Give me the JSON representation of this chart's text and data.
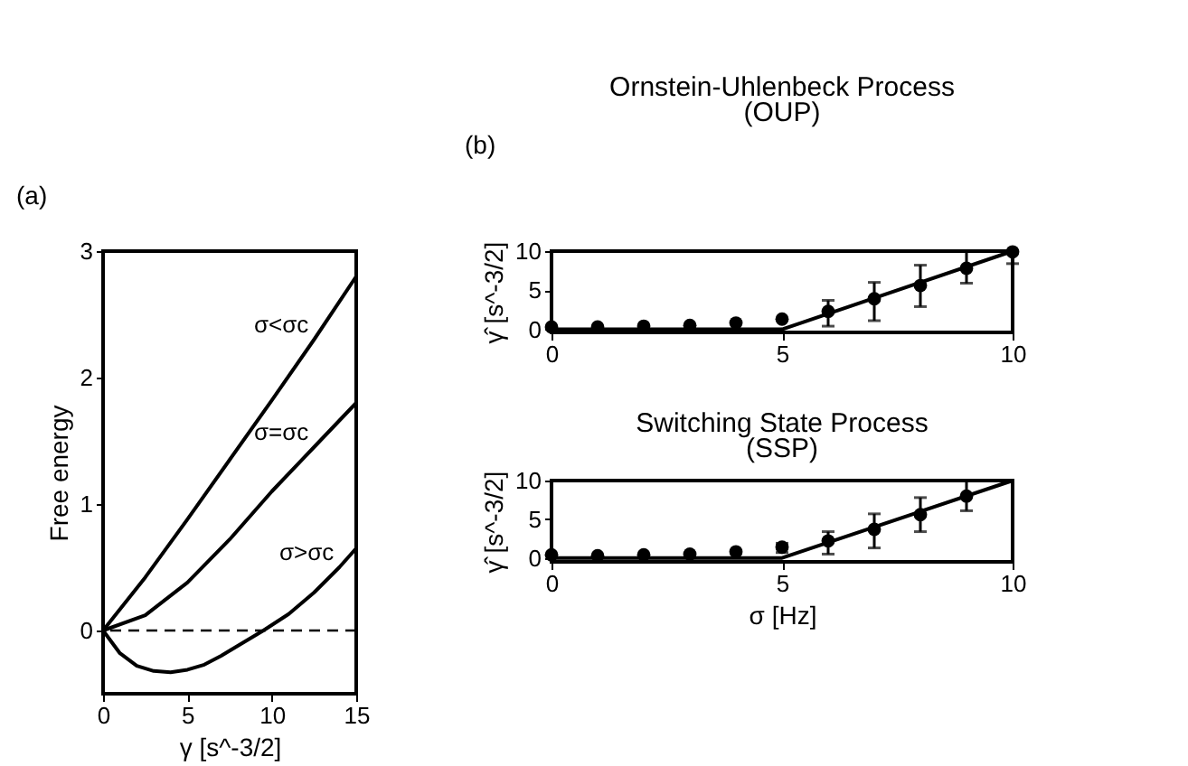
{
  "chart_data": [
    {
      "type": "line",
      "xlabel": "γ [s^-3/2]",
      "ylabel": "Free energy",
      "xlim": [
        0,
        15
      ],
      "ylim": [
        -0.5,
        3
      ],
      "xticks": [
        0,
        5,
        10,
        15
      ],
      "yticks": [
        0,
        1,
        2,
        3
      ],
      "grid": false,
      "legend": false,
      "line_style": "solid",
      "series": [
        {
          "name": "σ<σc",
          "color": "#000000",
          "marker": "none",
          "x": [
            0,
            2.5,
            5,
            7.5,
            10,
            12.5,
            15
          ],
          "values": [
            0,
            0.42,
            0.88,
            1.35,
            1.82,
            2.3,
            2.8
          ]
        },
        {
          "name": "σ=σc",
          "color": "#000000",
          "marker": "none",
          "x": [
            0,
            2.5,
            5,
            7.5,
            10,
            12.5,
            15
          ],
          "values": [
            0,
            0.12,
            0.38,
            0.72,
            1.1,
            1.45,
            1.8
          ]
        },
        {
          "name": "σ>σc",
          "color": "#000000",
          "marker": "none",
          "x": [
            0,
            1,
            2,
            3,
            4,
            5,
            6,
            7,
            8,
            9.5,
            11,
            12.5,
            14,
            15
          ],
          "values": [
            0,
            -0.18,
            -0.28,
            -0.32,
            -0.33,
            -0.31,
            -0.27,
            -0.2,
            -0.12,
            0,
            0.13,
            0.3,
            0.5,
            0.65
          ]
        }
      ],
      "ref_lines": [
        {
          "axis": "y",
          "value": 0,
          "color": "#000000",
          "line_style": "dashed"
        }
      ],
      "annotations": [
        "(a)"
      ]
    },
    {
      "type": "scatter",
      "title": "Ornstein-Uhlenbeck Process\n(OUP)",
      "ylabel": "γ̂ [s^-3/2]",
      "xlim": [
        0,
        10
      ],
      "ylim": [
        -0.4,
        10
      ],
      "xticks": [
        0,
        5,
        10
      ],
      "yticks": [
        0,
        5,
        10
      ],
      "grid": false,
      "legend": false,
      "series": [
        {
          "type": "scatter",
          "marker": "circle",
          "color": "#000000",
          "x": [
            0,
            1,
            2,
            3,
            4,
            5,
            6,
            7,
            8,
            9,
            10
          ],
          "values": [
            0.3,
            0.3,
            0.4,
            0.5,
            0.8,
            1.3,
            2.3,
            3.9,
            5.6,
            7.8,
            9.9
          ],
          "errors": [
            null,
            null,
            null,
            null,
            null,
            null,
            [
              0.4,
              3.7
            ],
            [
              1.1,
              6.0
            ],
            [
              2.9,
              8.2
            ],
            [
              5.9,
              10
            ],
            [
              8.4,
              10
            ]
          ]
        },
        {
          "type": "line",
          "marker": "none",
          "color": "#000000",
          "line_style": "solid",
          "x": [
            0,
            5,
            10
          ],
          "values": [
            0,
            0,
            10
          ]
        }
      ],
      "annotations": [
        "(b)"
      ]
    },
    {
      "type": "scatter",
      "title": "Switching State Process\n(SSP)",
      "xlabel": "σ [Hz]",
      "ylabel": "γ̂ [s^-3/2]",
      "xlim": [
        0,
        10
      ],
      "ylim": [
        -0.5,
        10
      ],
      "xticks": [
        0,
        5,
        10
      ],
      "yticks": [
        0,
        5,
        10
      ],
      "grid": false,
      "legend": false,
      "series": [
        {
          "type": "scatter",
          "marker": "circle",
          "color": "#000000",
          "x": [
            0,
            1,
            2,
            3,
            4,
            5,
            6,
            7,
            8,
            9
          ],
          "values": [
            0.4,
            0.3,
            0.4,
            0.5,
            0.8,
            1.4,
            2.2,
            3.7,
            5.6,
            8.0
          ],
          "errors": [
            null,
            null,
            null,
            null,
            null,
            [
              0.7,
              1.9
            ],
            [
              0.5,
              3.4
            ],
            [
              1.3,
              5.7
            ],
            [
              3.4,
              7.8
            ],
            [
              6.1,
              10
            ]
          ]
        },
        {
          "type": "line",
          "marker": "none",
          "color": "#000000",
          "line_style": "solid",
          "x": [
            0,
            5,
            10
          ],
          "values": [
            0,
            0,
            10
          ]
        }
      ]
    }
  ]
}
